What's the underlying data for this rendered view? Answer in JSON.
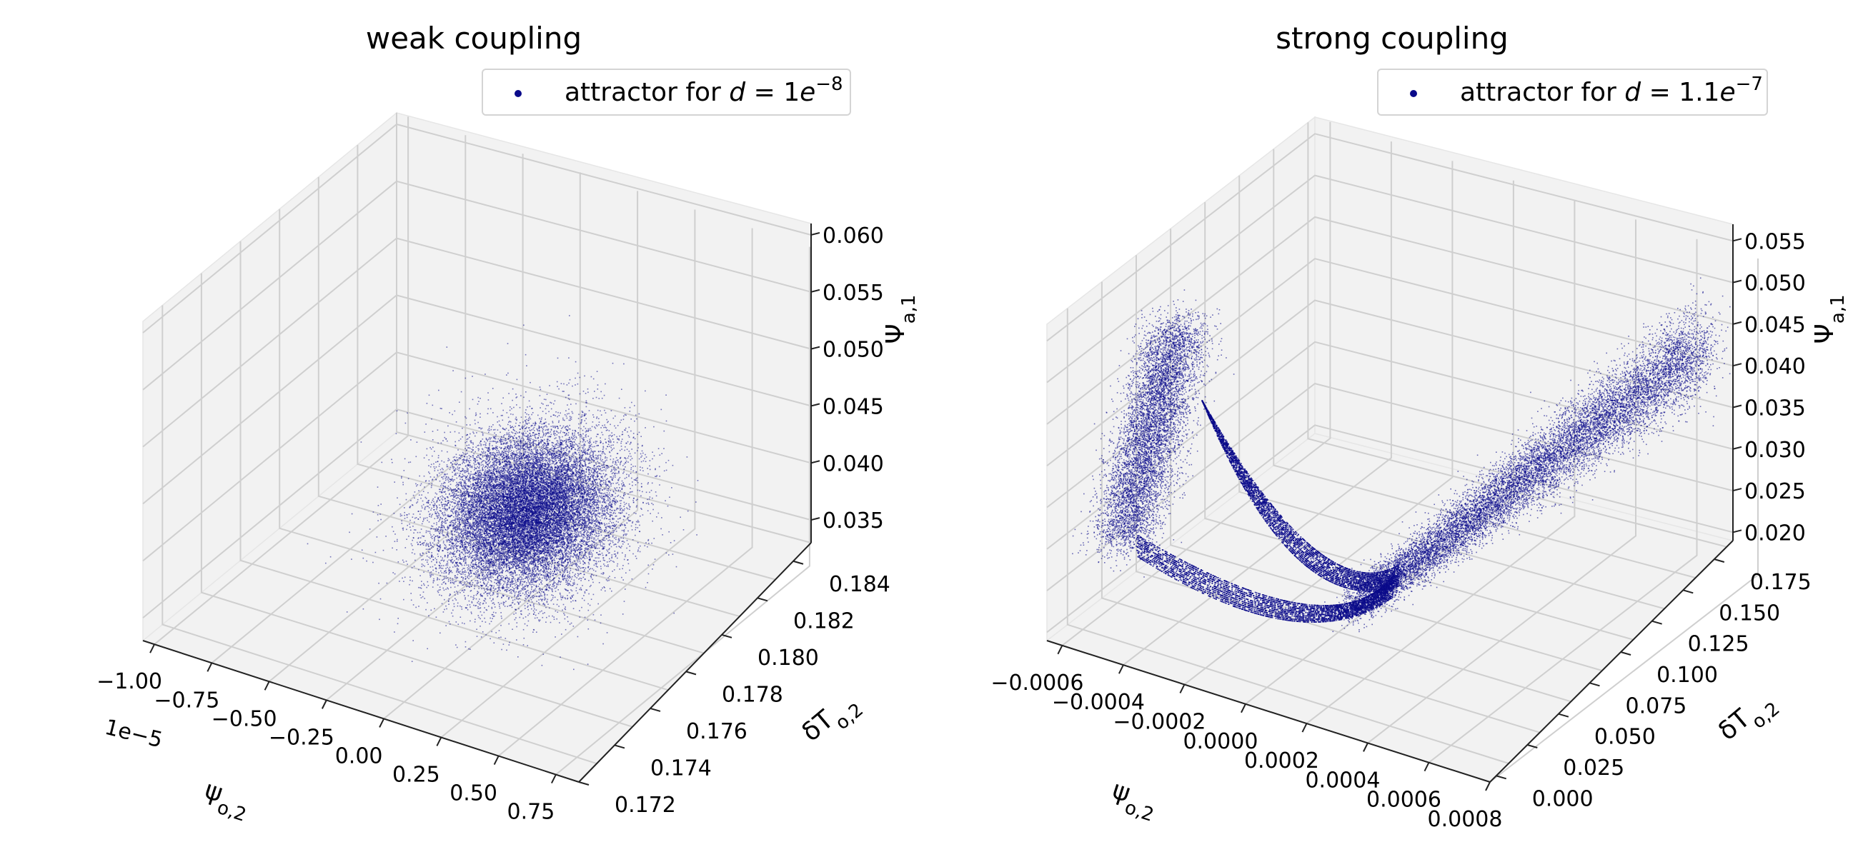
{
  "colors": {
    "points": "#0a0a8a",
    "pane_bottom": "#ebebeb",
    "pane_side": "#f2f2f2"
  },
  "chart_data": [
    {
      "type": "scatter",
      "projection": "3d",
      "title": "weak coupling",
      "legend": {
        "label": "attractor for",
        "expr": "d = 1e",
        "exp": "−8",
        "position": "top-right"
      },
      "series": [
        {
          "name": "attractor for d = 1e−8",
          "shape": "ellipsoid",
          "n_points": 20000
        }
      ],
      "xlabel": "ψ_{o,2}",
      "ylabel": "δT_{o,2}",
      "zlabel": "Ψ_{a,1}",
      "x_offset": "1e−5",
      "xlim": [
        -1.05,
        0.85
      ],
      "ylim": [
        0.172,
        0.185
      ],
      "zlim": [
        0.033,
        0.061
      ],
      "xticks": [
        "−1.00",
        "−0.75",
        "−0.50",
        "−0.25",
        "0.00",
        "0.25",
        "0.50",
        "0.75"
      ],
      "yticks": [
        "0.172",
        "0.174",
        "0.176",
        "0.178",
        "0.180",
        "0.182",
        "0.184"
      ],
      "zticks": [
        "0.035",
        "0.040",
        "0.045",
        "0.050",
        "0.055",
        "0.060"
      ],
      "grid": true
    },
    {
      "type": "scatter",
      "projection": "3d",
      "title": "strong coupling",
      "legend": {
        "label": "attractor for",
        "expr": "d = 1.1e",
        "exp": "−7",
        "position": "top-right"
      },
      "series": [
        {
          "name": "attractor for d = 1.1e−7",
          "shape": "two-lobe attractor joined by looping trajectory band",
          "n_points": 26000
        }
      ],
      "xlabel": "ψ_{o,2}",
      "ylabel": "δT_{o,2}",
      "zlabel": "Ψ_{a,1}",
      "xlim": [
        -0.00065,
        0.0008
      ],
      "ylim": [
        -0.005,
        0.19
      ],
      "zlim": [
        0.019,
        0.057
      ],
      "xticks": [
        "−0.0006",
        "−0.0004",
        "−0.0002",
        "0.0000",
        "0.0002",
        "0.0004",
        "0.0006",
        "0.0008"
      ],
      "yticks": [
        "0.000",
        "0.025",
        "0.050",
        "0.075",
        "0.100",
        "0.125",
        "0.150",
        "0.175"
      ],
      "zticks": [
        "0.020",
        "0.025",
        "0.030",
        "0.035",
        "0.040",
        "0.045",
        "0.050",
        "0.055"
      ],
      "grid": true
    }
  ]
}
